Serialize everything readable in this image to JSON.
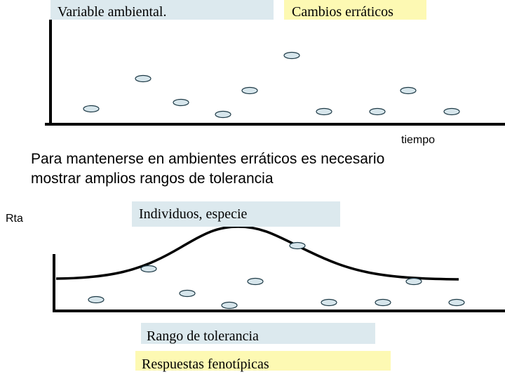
{
  "colors": {
    "blue_box": "#dce9ee",
    "yellow_box": "#fdf9b3",
    "dot_fill": "#d7e6ec",
    "dot_stroke": "#1f3b47",
    "axis": "#000000"
  },
  "top_panel": {
    "label_left": "Variable ambiental.",
    "label_right": "Cambios erráticos",
    "x_axis_label": "tiempo"
  },
  "caption": {
    "line1": "Para mantenerse en ambientes erráticos es necesario",
    "line2": "mostrar amplios rangos de tolerancia"
  },
  "bottom_panel": {
    "y_axis_label": "Rta",
    "label_top": "Individuos, especie",
    "label_middle": "Rango de tolerancia",
    "label_bottom": "Respuestas fenotípicas"
  }
}
